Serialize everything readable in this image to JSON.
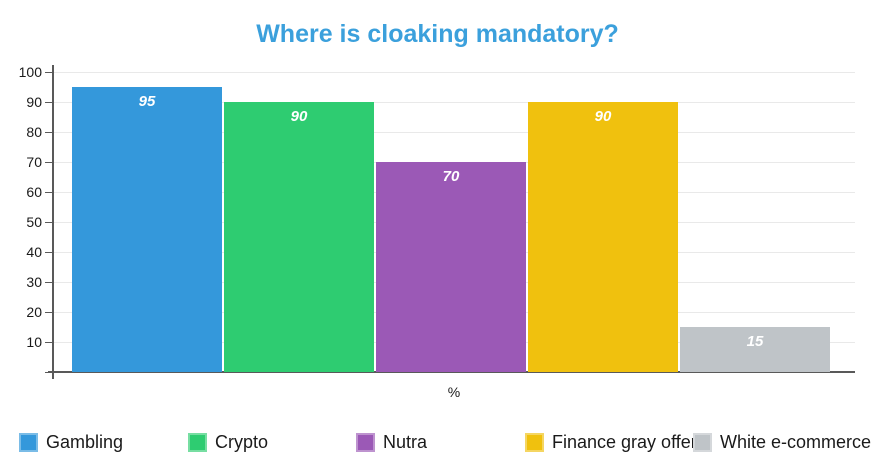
{
  "chart_data": {
    "type": "bar",
    "title": "Where is cloaking mandatory?",
    "categories": [
      "Gambling",
      "Crypto",
      "Nutra",
      "Finance gray offers",
      "White e-commerce"
    ],
    "values": [
      95,
      90,
      70,
      90,
      15
    ],
    "value_labels": [
      "95",
      "90",
      "70",
      "90",
      "15"
    ],
    "bar_colors": [
      "#3498db",
      "#2ecc71",
      "#9b59b6",
      "#f0c10e",
      "#bfc4c8"
    ],
    "xlabel": "%",
    "ylabel": "",
    "ylim": [
      0,
      100
    ],
    "ytick_step": 10,
    "ytick_labels": [
      "10",
      "20",
      "30",
      "40",
      "50",
      "60",
      "70",
      "80",
      "90",
      "100"
    ],
    "grid": true,
    "legend_position": "bottom"
  },
  "colors": {
    "title_text": "#3ba0dc",
    "axis_line": "#595959",
    "grid_line": "#e9e9e9",
    "tick_text": "#1a1a1a",
    "value_label_text": "#ffffff",
    "legend_text": "#1a1a1a",
    "background": "#ffffff"
  }
}
